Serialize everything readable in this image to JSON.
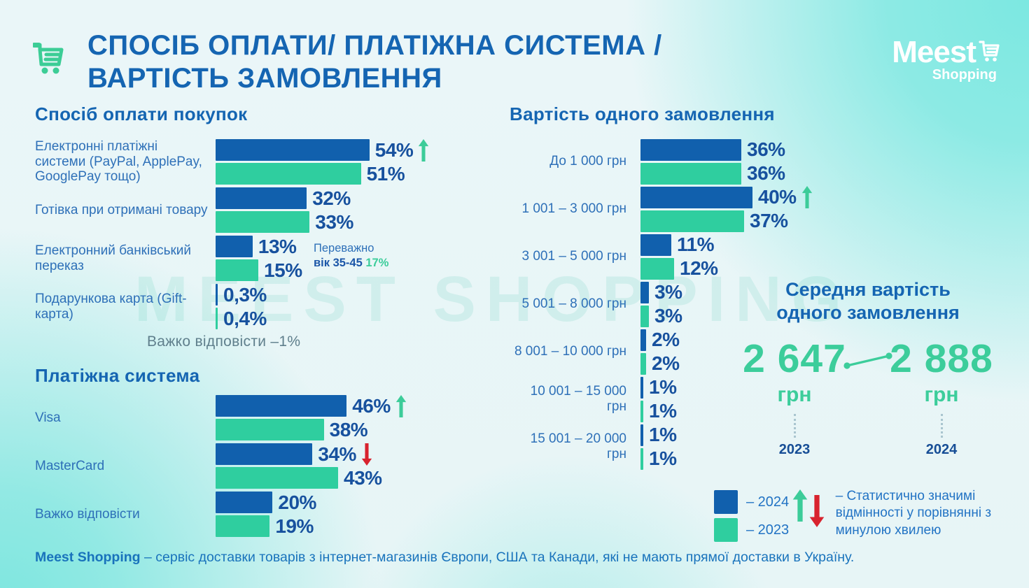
{
  "header": {
    "title_line1": "СПОСІБ ОПЛАТИ/ ПЛАТІЖНА СИСТЕМА /",
    "title_line2": "ВАРТІСТЬ ЗАМОВЛЕННЯ"
  },
  "logo": {
    "brand": "Meest",
    "sub": "Shopping"
  },
  "watermark": "MEEST SHOPPING",
  "colors": {
    "bar_2024_blue": "#1160ad",
    "bar_2023_green": "#2fce9f",
    "heading_blue": "#1565b2",
    "value_navy": "#17519e",
    "accent_green": "#3ccd9b",
    "significant_up_green": "#3ccc99",
    "significant_down_red": "#d8232e",
    "muted_note": "#5f7f8c",
    "corner_turquoise": "#7ce8e1"
  },
  "chart_data": [
    {
      "type": "bar",
      "title": "Спосіб оплати покупок",
      "categories": [
        "Електронні платіжні системи (PayPal, ApplePay, GooglePay тощо)",
        "Готівка при отримані товару",
        "Електронний банківський переказ",
        "Подарункова карта (Gift-карта)"
      ],
      "series": [
        {
          "name": "2024",
          "values": [
            54,
            32,
            13,
            0.3
          ]
        },
        {
          "name": "2023",
          "values": [
            51,
            33,
            15,
            0.4
          ]
        }
      ],
      "value_labels": [
        [
          "54%",
          "51%"
        ],
        [
          "32%",
          "33%"
        ],
        [
          "13%",
          "15%"
        ],
        [
          "0,3%",
          "0,4%"
        ]
      ],
      "significance": [
        "up",
        null,
        null,
        null
      ],
      "note": "Важко відповісти –1%",
      "annotation": {
        "line1": "Переважно",
        "line2_bold": "вік 35-45",
        "line2_value": "17%"
      },
      "xlim": [
        0,
        60
      ],
      "legend_position": "bottom-right",
      "grid": false
    },
    {
      "type": "bar",
      "title": "Платіжна система",
      "categories": [
        "Visa",
        "MasterCard",
        "Важко відповісти"
      ],
      "series": [
        {
          "name": "2024",
          "values": [
            46,
            34,
            20
          ]
        },
        {
          "name": "2023",
          "values": [
            38,
            43,
            19
          ]
        }
      ],
      "value_labels": [
        [
          "46%",
          "38%"
        ],
        [
          "34%",
          "43%"
        ],
        [
          "20%",
          "19%"
        ]
      ],
      "significance": [
        "up",
        "down",
        null
      ],
      "xlim": [
        0,
        60
      ],
      "legend_position": "bottom-right",
      "grid": false
    },
    {
      "type": "bar",
      "title": "Вартість одного замовлення",
      "categories": [
        "До 1 000 грн",
        "1 001 – 3 000 грн",
        "3 001 – 5 000 грн",
        "5 001 – 8 000 грн",
        "8 001 – 10 000 грн",
        "10 001 – 15 000 грн",
        "15 001 – 20 000 грн"
      ],
      "series": [
        {
          "name": "2024",
          "values": [
            36,
            40,
            11,
            3,
            2,
            1,
            1
          ]
        },
        {
          "name": "2023",
          "values": [
            36,
            37,
            12,
            3,
            2,
            1,
            1
          ]
        }
      ],
      "value_labels": [
        [
          "36%",
          "36%"
        ],
        [
          "40%",
          "37%"
        ],
        [
          "11%",
          "12%"
        ],
        [
          "3%",
          "3%"
        ],
        [
          "2%",
          "2%"
        ],
        [
          "1%",
          "1%"
        ],
        [
          "1%",
          "1%"
        ]
      ],
      "significance": [
        null,
        "up",
        null,
        null,
        null,
        null,
        null
      ],
      "xlim": [
        0,
        45
      ],
      "legend_position": "bottom-right",
      "grid": false
    },
    {
      "type": "comparison",
      "title": "Середня вартість одного замовлення",
      "points": [
        {
          "value": "2 647",
          "unit": "грн",
          "year": "2023"
        },
        {
          "value": "2 888",
          "unit": "грн",
          "year": "2024"
        }
      ],
      "trend": "up"
    }
  ],
  "average": {
    "title_line1": "Середня вартість",
    "title_line2": "одного замовлення",
    "points": [
      {
        "value": "2 647",
        "unit": "грн",
        "year": "2023"
      },
      {
        "value": "2 888",
        "unit": "грн",
        "year": "2024"
      }
    ]
  },
  "legend": {
    "items": [
      {
        "label": "– 2024",
        "color": "#1160ad"
      },
      {
        "label": "– 2023",
        "color": "#2fce9f"
      }
    ],
    "note": "– Статистично значимі відмінності у порівнянні з минулою хвилею"
  },
  "footer": {
    "brand": "Meest Shopping",
    "text": " – сервіс доставки товарів з інтернет-магазинів Європи, США та Канади, які не мають прямої доставки в Україну."
  }
}
